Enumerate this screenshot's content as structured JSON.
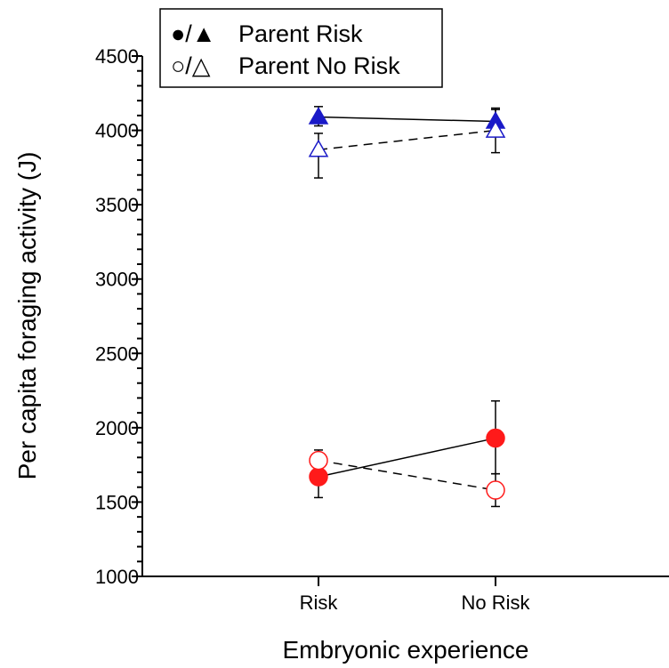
{
  "chart_data": {
    "type": "line",
    "xlabel": "Embryonic experience",
    "ylabel": "Per capita foraging activity (J)",
    "categories": [
      "Risk",
      "No Risk"
    ],
    "ylim": [
      1000,
      4500
    ],
    "yticks": [
      1000,
      1500,
      2000,
      2500,
      3000,
      3500,
      4000,
      4500
    ],
    "legend": {
      "placement": "top-left",
      "entries": [
        {
          "symbols": "●/▲",
          "label": "Parent Risk"
        },
        {
          "symbols": "○/△",
          "label": "Parent No Risk"
        }
      ]
    },
    "series": [
      {
        "marker": "triangle",
        "fill": "filled",
        "color": "#1a1ac8",
        "line": "solid",
        "values": [
          4090,
          4060
        ],
        "errors": [
          [
            4030,
            4160
          ],
          [
            4030,
            4140
          ]
        ]
      },
      {
        "marker": "triangle",
        "fill": "open",
        "color": "#1a1ac8",
        "line": "dashed",
        "values": [
          3870,
          4000
        ],
        "errors": [
          [
            3680,
            3980
          ],
          [
            3850,
            4150
          ]
        ]
      },
      {
        "marker": "circle",
        "fill": "filled",
        "color": "#ff1a1a",
        "line": "solid",
        "values": [
          1670,
          1930
        ],
        "errors": [
          [
            1530,
            1790
          ],
          [
            1690,
            2180
          ]
        ]
      },
      {
        "marker": "circle",
        "fill": "open",
        "color": "#ff1a1a",
        "line": "dashed",
        "values": [
          1780,
          1580
        ],
        "errors": [
          [
            1710,
            1850
          ],
          [
            1470,
            1690
          ]
        ]
      }
    ]
  }
}
